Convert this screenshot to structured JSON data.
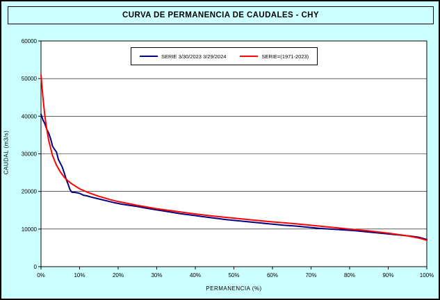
{
  "window": {
    "background": "#CCFFFF",
    "plot_background": "#FFFFFF"
  },
  "chart_data": {
    "type": "line",
    "title": "CURVA DE PERMANENCIA DE CAUDALES - CHY",
    "xlabel": "PERMANENCIA (%)",
    "ylabel": "CAUDAL (m3/s)",
    "xlim": [
      0,
      100
    ],
    "ylim": [
      0,
      60000
    ],
    "x_ticks": [
      0,
      10,
      20,
      30,
      40,
      50,
      60,
      70,
      80,
      90,
      100
    ],
    "x_tick_labels": [
      "0%",
      "10%",
      "20%",
      "30%",
      "40%",
      "50%",
      "60%",
      "70%",
      "80%",
      "90%",
      "100%"
    ],
    "y_ticks": [
      0,
      10000,
      20000,
      30000,
      40000,
      50000,
      60000
    ],
    "y_tick_labels": [
      "0",
      "10000",
      "20000",
      "30000",
      "40000",
      "50000",
      "60000"
    ],
    "grid": "horizontal",
    "legend_position": "top-center-inside",
    "series": [
      {
        "name": "SERIE 3/30/2023 3/29/2024",
        "color": "#000080",
        "x": [
          0,
          0.2,
          0.5,
          1,
          1.5,
          2,
          2.5,
          3,
          3.5,
          4,
          4.5,
          5,
          5.5,
          6,
          6.3,
          6.6,
          7,
          7.5,
          8,
          9,
          10,
          11,
          12,
          13,
          15,
          17,
          19,
          21,
          23,
          25,
          27,
          30,
          33,
          36,
          39,
          42,
          45,
          48,
          51,
          54,
          57,
          60,
          63,
          66,
          69,
          72,
          75,
          78,
          81,
          84,
          87,
          90,
          93,
          96,
          98,
          99,
          100
        ],
        "y": [
          40500,
          40000,
          39000,
          38000,
          36500,
          35500,
          34000,
          32000,
          31200,
          30500,
          28500,
          27500,
          26500,
          25000,
          24000,
          23000,
          22000,
          20500,
          19800,
          19700,
          19500,
          19000,
          18800,
          18500,
          18000,
          17500,
          17000,
          16600,
          16300,
          16000,
          15600,
          15100,
          14600,
          14100,
          13700,
          13300,
          12900,
          12500,
          12200,
          11900,
          11600,
          11300,
          11000,
          10800,
          10500,
          10200,
          10000,
          9800,
          9600,
          9300,
          9000,
          8700,
          8400,
          8100,
          7800,
          7500,
          7200
        ]
      },
      {
        "name": "SERIE=(1971-2023)",
        "color": "#FF0000",
        "x": [
          0,
          0.5,
          1,
          1.5,
          2,
          3,
          4,
          5,
          6,
          7,
          8,
          10,
          12,
          15,
          18,
          20,
          25,
          30,
          35,
          40,
          45,
          50,
          55,
          60,
          65,
          70,
          75,
          80,
          85,
          90,
          95,
          98,
          100
        ],
        "y": [
          51000,
          45000,
          40000,
          36500,
          33500,
          29500,
          27000,
          25200,
          23800,
          22800,
          22000,
          20700,
          19800,
          18700,
          17800,
          17300,
          16300,
          15400,
          14700,
          14000,
          13400,
          12900,
          12400,
          11900,
          11500,
          11000,
          10500,
          10000,
          9500,
          8900,
          8200,
          7600,
          7000
        ]
      }
    ]
  }
}
